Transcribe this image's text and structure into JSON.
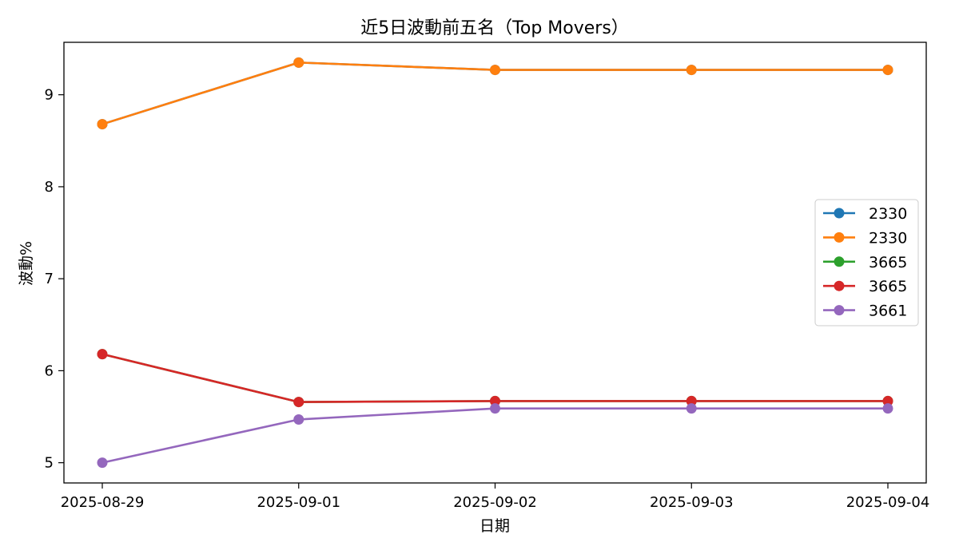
{
  "chart_data": {
    "type": "line",
    "title": "近5日波動前五名（Top Movers）",
    "xlabel": "日期",
    "ylabel": "波動%",
    "x": [
      "2025-08-29",
      "2025-09-01",
      "2025-09-02",
      "2025-09-03",
      "2025-09-04"
    ],
    "yticks": [
      5,
      6,
      7,
      8,
      9
    ],
    "ylim": [
      4.78,
      9.57
    ],
    "grid": false,
    "legend_position": "center-right",
    "series": [
      {
        "name": "2330",
        "color": "#1f77b4",
        "values": [
          8.68,
          9.35,
          9.27,
          9.27,
          9.27
        ]
      },
      {
        "name": "2330",
        "color": "#ff7f0e",
        "values": [
          8.68,
          9.35,
          9.27,
          9.27,
          9.27
        ]
      },
      {
        "name": "3665",
        "color": "#2ca02c",
        "values": [
          6.18,
          5.66,
          5.67,
          5.67,
          5.67
        ]
      },
      {
        "name": "3665",
        "color": "#d62728",
        "values": [
          6.18,
          5.66,
          5.67,
          5.67,
          5.67
        ]
      },
      {
        "name": "3661",
        "color": "#9467bd",
        "values": [
          5.0,
          5.47,
          5.59,
          5.59,
          5.59
        ]
      }
    ]
  }
}
